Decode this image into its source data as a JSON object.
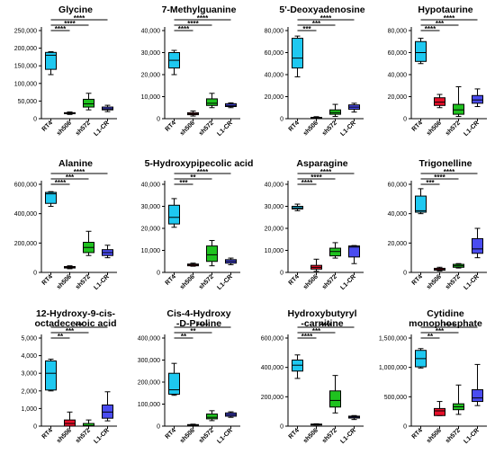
{
  "categories": [
    "RT4",
    "sh506",
    "sh572",
    "L1-CR"
  ],
  "colors": {
    "RT4": "#1ec8f0",
    "sh506": "#e8102a",
    "sh572": "#1fc21f",
    "L1-CR": "#4a4cf0"
  },
  "chart_data": [
    {
      "type": "box",
      "title": [
        "Glycine"
      ],
      "yticks": [
        0,
        50000,
        100000,
        150000,
        200000,
        250000
      ],
      "ytick_labels": [
        "0",
        "50,000",
        "100,000",
        "150,000",
        "200,000",
        "250,000"
      ],
      "ylim": [
        0,
        250000
      ],
      "boxes": [
        {
          "min": 125000,
          "q1": 140000,
          "median": 180000,
          "q3": 188000,
          "max": 190000
        },
        {
          "min": 12000,
          "q1": 14000,
          "median": 15000,
          "q3": 17000,
          "max": 19000
        },
        {
          "min": 25000,
          "q1": 33000,
          "median": 42000,
          "q3": 55000,
          "max": 72000
        },
        {
          "min": 20000,
          "q1": 25000,
          "median": 28000,
          "q3": 33000,
          "max": 38000
        }
      ],
      "significance": [
        "****",
        "****",
        "****"
      ]
    },
    {
      "type": "box",
      "title": [
        "7-Methylguanine"
      ],
      "yticks": [
        0,
        10000,
        20000,
        30000,
        40000
      ],
      "ytick_labels": [
        "0",
        "10,000",
        "20,000",
        "30,000",
        "40,000"
      ],
      "ylim": [
        0,
        40000
      ],
      "boxes": [
        {
          "min": 20000,
          "q1": 23000,
          "median": 26500,
          "q3": 30000,
          "max": 31000
        },
        {
          "min": 1200,
          "q1": 1800,
          "median": 2200,
          "q3": 2700,
          "max": 3500
        },
        {
          "min": 5000,
          "q1": 6000,
          "median": 7000,
          "q3": 9000,
          "max": 11500
        },
        {
          "min": 5000,
          "q1": 5500,
          "median": 6000,
          "q3": 6800,
          "max": 7200
        }
      ],
      "significance": [
        "****",
        "****",
        "****"
      ]
    },
    {
      "type": "box",
      "title": [
        "5'-Deoxyadenosine"
      ],
      "yticks": [
        0,
        20000,
        40000,
        60000,
        80000
      ],
      "ytick_labels": [
        "0",
        "20,000",
        "40,000",
        "60,000",
        "80,000"
      ],
      "ylim": [
        0,
        80000
      ],
      "boxes": [
        {
          "min": 38000,
          "q1": 46000,
          "median": 55000,
          "q3": 73000,
          "max": 75000
        },
        {
          "min": 300,
          "q1": 500,
          "median": 800,
          "q3": 1200,
          "max": 1800
        },
        {
          "min": 2000,
          "q1": 4000,
          "median": 5500,
          "q3": 8000,
          "max": 13000
        },
        {
          "min": 6000,
          "q1": 8500,
          "median": 10500,
          "q3": 12500,
          "max": 14000
        }
      ],
      "significance": [
        "****",
        "***",
        "***"
      ]
    },
    {
      "type": "box",
      "title": [
        "Hypotaurine"
      ],
      "yticks": [
        0,
        20000,
        40000,
        60000,
        80000
      ],
      "ytick_labels": [
        "0",
        "20,000",
        "40,000",
        "60,000",
        "80,000"
      ],
      "ylim": [
        0,
        80000
      ],
      "boxes": [
        {
          "min": 50000,
          "q1": 52000,
          "median": 60000,
          "q3": 70000,
          "max": 73000
        },
        {
          "min": 10000,
          "q1": 12000,
          "median": 15000,
          "q3": 19000,
          "max": 22000
        },
        {
          "min": 2000,
          "q1": 4000,
          "median": 8000,
          "q3": 13000,
          "max": 29000
        },
        {
          "min": 11000,
          "q1": 14000,
          "median": 17000,
          "q3": 21000,
          "max": 27000
        }
      ],
      "significance": [
        "****",
        "***",
        "****"
      ]
    },
    {
      "type": "box",
      "title": [
        "Alanine"
      ],
      "yticks": [
        0,
        200000,
        400000,
        600000
      ],
      "ytick_labels": [
        "0",
        "200,000",
        "400,000",
        "600,000"
      ],
      "ylim": [
        0,
        600000
      ],
      "boxes": [
        {
          "min": 450000,
          "q1": 470000,
          "median": 535000,
          "q3": 545000,
          "max": 550000
        },
        {
          "min": 25000,
          "q1": 30000,
          "median": 35000,
          "q3": 40000,
          "max": 45000
        },
        {
          "min": 115000,
          "q1": 135000,
          "median": 170000,
          "q3": 205000,
          "max": 280000
        },
        {
          "min": 100000,
          "q1": 115000,
          "median": 135000,
          "q3": 155000,
          "max": 185000
        }
      ],
      "significance": [
        "****",
        "***",
        "****"
      ]
    },
    {
      "type": "box",
      "title": [
        "5-Hydroxypipecolic acid"
      ],
      "yticks": [
        0,
        10000,
        20000,
        30000,
        40000
      ],
      "ytick_labels": [
        "0",
        "10,000",
        "20,000",
        "30,000",
        "40,000"
      ],
      "ylim": [
        0,
        40000
      ],
      "boxes": [
        {
          "min": 20500,
          "q1": 22000,
          "median": 25000,
          "q3": 30500,
          "max": 33500
        },
        {
          "min": 2800,
          "q1": 3000,
          "median": 3400,
          "q3": 3800,
          "max": 4200
        },
        {
          "min": 3000,
          "q1": 5000,
          "median": 8000,
          "q3": 12000,
          "max": 14500
        },
        {
          "min": 3500,
          "q1": 4200,
          "median": 5000,
          "q3": 5800,
          "max": 6500
        }
      ],
      "significance": [
        "****",
        "**",
        "***"
      ]
    },
    {
      "type": "box",
      "title": [
        "Asparagine"
      ],
      "yticks": [
        0,
        10000,
        20000,
        30000,
        40000
      ],
      "ytick_labels": [
        "0",
        "10,000",
        "20,000",
        "30,000",
        "40,000"
      ],
      "ylim": [
        0,
        40000
      ],
      "boxes": [
        {
          "min": 28000,
          "q1": 28800,
          "median": 29300,
          "q3": 30000,
          "max": 31000
        },
        {
          "min": 500,
          "q1": 1500,
          "median": 2300,
          "q3": 3200,
          "max": 6000
        },
        {
          "min": 6500,
          "q1": 7500,
          "median": 9500,
          "q3": 11000,
          "max": 13500
        },
        {
          "min": 4000,
          "q1": 7000,
          "median": 11500,
          "q3": 12000,
          "max": 12200
        }
      ],
      "significance": [
        "****",
        "****",
        "****"
      ]
    },
    {
      "type": "box",
      "title": [
        "Trigonelline"
      ],
      "yticks": [
        0,
        20000,
        40000,
        60000
      ],
      "ytick_labels": [
        "0",
        "20,000",
        "40,000",
        "60,000"
      ],
      "ylim": [
        0,
        60000
      ],
      "boxes": [
        {
          "min": 40000,
          "q1": 41000,
          "median": 42000,
          "q3": 52000,
          "max": 57000
        },
        {
          "min": 1000,
          "q1": 1500,
          "median": 2000,
          "q3": 2800,
          "max": 3500
        },
        {
          "min": 3000,
          "q1": 3500,
          "median": 4500,
          "q3": 5500,
          "max": 6000
        },
        {
          "min": 10000,
          "q1": 13000,
          "median": 16000,
          "q3": 23000,
          "max": 30000
        }
      ],
      "significance": [
        "****",
        "****",
        "***"
      ]
    },
    {
      "type": "box",
      "title": [
        "12-Hydroxy-9-cis-",
        "octadecenoic acid"
      ],
      "yticks": [
        0,
        1000,
        2000,
        3000,
        4000,
        5000
      ],
      "ytick_labels": [
        "0",
        "1,000",
        "2,000",
        "3,000",
        "4,000",
        "5,000"
      ],
      "ylim": [
        0,
        5000
      ],
      "boxes": [
        {
          "min": 2000,
          "q1": 2050,
          "median": 3000,
          "q3": 3700,
          "max": 3800
        },
        {
          "min": 0,
          "q1": 0,
          "median": 150,
          "q3": 350,
          "max": 800
        },
        {
          "min": 0,
          "q1": 0,
          "median": 30,
          "q3": 150,
          "max": 350
        },
        {
          "min": 300,
          "q1": 450,
          "median": 800,
          "q3": 1200,
          "max": 1950
        }
      ],
      "significance": [
        "***",
        "***",
        "**"
      ]
    },
    {
      "type": "box",
      "title": [
        "Cis-4-Hydroxy",
        "-D-Proline"
      ],
      "yticks": [
        0,
        100000,
        200000,
        300000,
        400000
      ],
      "ytick_labels": [
        "0",
        "100,000",
        "200,000",
        "300,000",
        "400,000"
      ],
      "ylim": [
        0,
        400000
      ],
      "boxes": [
        {
          "min": 140000,
          "q1": 145000,
          "median": 165000,
          "q3": 240000,
          "max": 285000
        },
        {
          "min": 2000,
          "q1": 3000,
          "median": 5000,
          "q3": 7000,
          "max": 9000
        },
        {
          "min": 25000,
          "q1": 33000,
          "median": 40000,
          "q3": 55000,
          "max": 70000
        },
        {
          "min": 40000,
          "q1": 45000,
          "median": 52000,
          "q3": 60000,
          "max": 65000
        }
      ],
      "significance": [
        "****",
        "**",
        "**"
      ]
    },
    {
      "type": "box",
      "title": [
        "Hydroxybutyryl",
        "-carnitine"
      ],
      "yticks": [
        0,
        200000,
        400000,
        600000
      ],
      "ytick_labels": [
        "0",
        "200,000",
        "400,000",
        "600,000"
      ],
      "ylim": [
        0,
        600000
      ],
      "boxes": [
        {
          "min": 325000,
          "q1": 375000,
          "median": 415000,
          "q3": 450000,
          "max": 485000
        },
        {
          "min": 8000,
          "q1": 10000,
          "median": 12000,
          "q3": 14000,
          "max": 16000
        },
        {
          "min": 90000,
          "q1": 130000,
          "median": 175000,
          "q3": 240000,
          "max": 345000
        },
        {
          "min": 45000,
          "q1": 55000,
          "median": 62000,
          "q3": 68000,
          "max": 72000
        }
      ],
      "significance": [
        "****",
        "***",
        "****"
      ]
    },
    {
      "type": "box",
      "title": [
        "Cytidine",
        "monophosphate"
      ],
      "yticks": [
        0,
        500000,
        1000000,
        1500000
      ],
      "ytick_labels": [
        "0",
        "500,000",
        "1,000,000",
        "1,500,000"
      ],
      "ylim": [
        0,
        1500000
      ],
      "boxes": [
        {
          "min": 990000,
          "q1": 1010000,
          "median": 1150000,
          "q3": 1290000,
          "max": 1320000
        },
        {
          "min": 180000,
          "q1": 180000,
          "median": 260000,
          "q3": 300000,
          "max": 420000
        },
        {
          "min": 200000,
          "q1": 280000,
          "median": 330000,
          "q3": 380000,
          "max": 700000
        },
        {
          "min": 350000,
          "q1": 420000,
          "median": 480000,
          "q3": 620000,
          "max": 1050000
        }
      ],
      "significance": [
        "****",
        "***",
        "**"
      ]
    }
  ]
}
